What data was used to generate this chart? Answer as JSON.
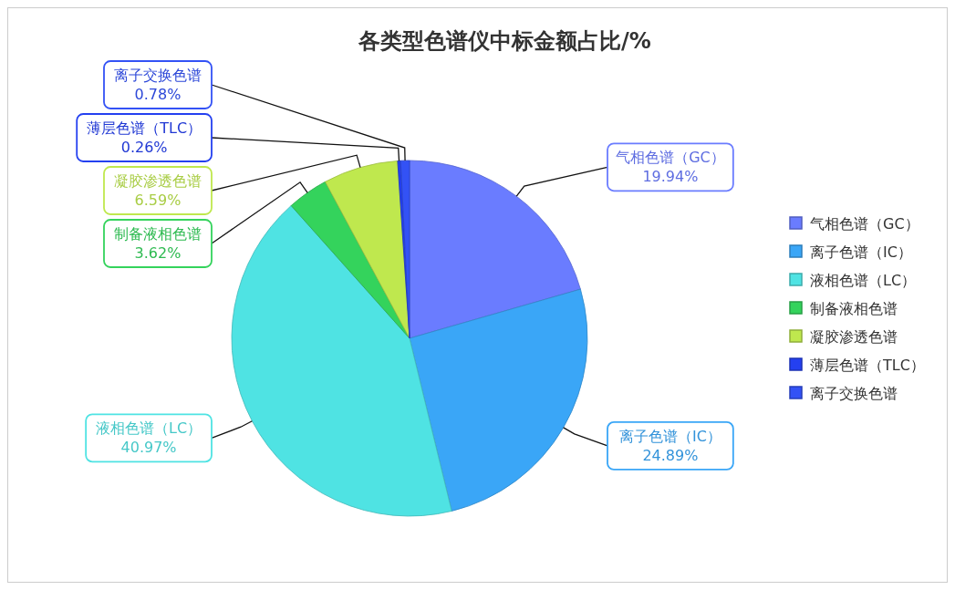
{
  "chart_data": {
    "type": "pie",
    "title": "各类型色谱仪中标金额占比/%",
    "categories": [
      "气相色谱（GC）",
      "离子色谱（IC）",
      "液相色谱（LC）",
      "制备液相色谱",
      "凝胶渗透色谱",
      "薄层色谱（TLC）",
      "离子交换色谱"
    ],
    "values": [
      19.94,
      24.89,
      40.97,
      3.62,
      6.59,
      0.26,
      0.78
    ],
    "colors": [
      "#6a7cff",
      "#3aa6f7",
      "#4fe3e3",
      "#34d35c",
      "#bfe84e",
      "#2440f0",
      "#3352f5"
    ],
    "value_labels": [
      "19.94%",
      "24.89%",
      "40.97%",
      "3.62%",
      "6.59%",
      "0.26%",
      "0.78%"
    ],
    "legend": "right"
  }
}
